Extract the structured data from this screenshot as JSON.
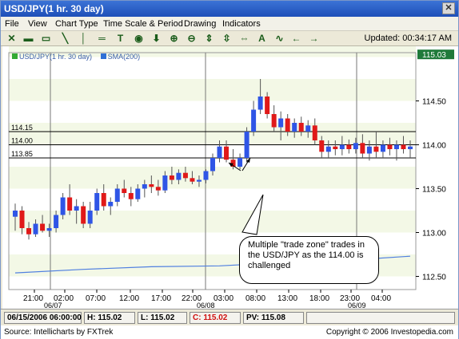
{
  "window": {
    "title": "USD/JPY(1 hr. 30 day)",
    "close_glyph": "✕"
  },
  "menu": [
    "File",
    "View",
    "Chart Type",
    "Time Scale & Period",
    "Drawing",
    "Indicators"
  ],
  "toolbar": {
    "icons": [
      "crosshair-icon",
      "print-icon",
      "zoom-rect-icon",
      "line-icon",
      "vertical-line-icon",
      "horizontal-line-icon",
      "text-icon",
      "circle-icon",
      "arrow-down-icon",
      "zoom-in-icon",
      "zoom-out-icon",
      "fit-icon",
      "fit-v-icon",
      "fit-h-icon",
      "fib-icon",
      "trend-icon",
      "arrow-left-icon",
      "arrow-right-icon"
    ],
    "glyphs": [
      "✕",
      "▬",
      "▭",
      "╲",
      "│",
      "═",
      "T",
      "◉",
      "⬇",
      "⊕",
      "⊖",
      "⇕",
      "⇳",
      "⇔",
      "A",
      "∿",
      "←",
      "→"
    ],
    "updated": "Updated: 00:34:17 AM"
  },
  "legend": {
    "series1": "USD/JPY(1 hr. 30 day)",
    "series2": "SMA(200)",
    "series1_color": "#33aa33",
    "series2_color": "#2f6fd6"
  },
  "current_price": "115.03",
  "price_lines": [
    "114.15",
    "114.00",
    "113.85"
  ],
  "x_ticks": [
    "21:00",
    "02:00",
    "07:00",
    "12:00",
    "17:00",
    "22:00",
    "03:00",
    "08:00",
    "13:00",
    "18:00",
    "23:00",
    "04:00"
  ],
  "date_labels": [
    "06/07",
    "06/08",
    "06/09"
  ],
  "callout": {
    "text": "Multiple \"trade zone\" trades in the USD/JPY as the 114.00 is challenged"
  },
  "infobar": {
    "date": "06/15/2006 06:00:00",
    "high": "H: 115.02",
    "low": "L: 115.02",
    "close": "C: 115.02",
    "pv": "PV: 115.08"
  },
  "footer": {
    "source": "Source: Intellicharts by FXTrek",
    "copyright": "Copyright © 2006 Investopedia.com"
  },
  "chart_data": {
    "type": "line",
    "ylim": [
      112.35,
      115.05
    ],
    "y_ticks": [
      112.5,
      113.0,
      113.5,
      114.0,
      114.5
    ],
    "up_color": "#2f55e6",
    "down_color": "#e01919",
    "candles": [
      {
        "o": 113.18,
        "h": 113.33,
        "l": 113.02,
        "c": 113.25
      },
      {
        "o": 113.25,
        "h": 113.3,
        "l": 112.98,
        "c": 113.05
      },
      {
        "o": 113.05,
        "h": 113.12,
        "l": 112.92,
        "c": 112.98
      },
      {
        "o": 112.98,
        "h": 113.15,
        "l": 112.95,
        "c": 113.1
      },
      {
        "o": 113.1,
        "h": 113.2,
        "l": 113.0,
        "c": 113.02
      },
      {
        "o": 113.02,
        "h": 113.1,
        "l": 112.95,
        "c": 113.05
      },
      {
        "o": 113.05,
        "h": 113.25,
        "l": 113.0,
        "c": 113.2
      },
      {
        "o": 113.2,
        "h": 113.45,
        "l": 113.15,
        "c": 113.4
      },
      {
        "o": 113.4,
        "h": 113.55,
        "l": 113.2,
        "c": 113.25
      },
      {
        "o": 113.25,
        "h": 113.38,
        "l": 113.1,
        "c": 113.3
      },
      {
        "o": 113.3,
        "h": 113.35,
        "l": 113.05,
        "c": 113.1
      },
      {
        "o": 113.1,
        "h": 113.35,
        "l": 113.05,
        "c": 113.25
      },
      {
        "o": 113.25,
        "h": 113.5,
        "l": 113.2,
        "c": 113.45
      },
      {
        "o": 113.45,
        "h": 113.55,
        "l": 113.25,
        "c": 113.3
      },
      {
        "o": 113.3,
        "h": 113.4,
        "l": 113.2,
        "c": 113.35
      },
      {
        "o": 113.35,
        "h": 113.55,
        "l": 113.3,
        "c": 113.5
      },
      {
        "o": 113.5,
        "h": 113.6,
        "l": 113.4,
        "c": 113.45
      },
      {
        "o": 113.45,
        "h": 113.52,
        "l": 113.3,
        "c": 113.38
      },
      {
        "o": 113.38,
        "h": 113.55,
        "l": 113.35,
        "c": 113.5
      },
      {
        "o": 113.5,
        "h": 113.6,
        "l": 113.4,
        "c": 113.55
      },
      {
        "o": 113.55,
        "h": 113.65,
        "l": 113.45,
        "c": 113.52
      },
      {
        "o": 113.52,
        "h": 113.6,
        "l": 113.42,
        "c": 113.48
      },
      {
        "o": 113.48,
        "h": 113.7,
        "l": 113.45,
        "c": 113.65
      },
      {
        "o": 113.65,
        "h": 113.75,
        "l": 113.55,
        "c": 113.6
      },
      {
        "o": 113.6,
        "h": 113.72,
        "l": 113.55,
        "c": 113.68
      },
      {
        "o": 113.68,
        "h": 113.75,
        "l": 113.58,
        "c": 113.62
      },
      {
        "o": 113.62,
        "h": 113.7,
        "l": 113.55,
        "c": 113.58
      },
      {
        "o": 113.58,
        "h": 113.65,
        "l": 113.52,
        "c": 113.6
      },
      {
        "o": 113.6,
        "h": 113.72,
        "l": 113.56,
        "c": 113.7
      },
      {
        "o": 113.7,
        "h": 113.9,
        "l": 113.65,
        "c": 113.85
      },
      {
        "o": 113.85,
        "h": 114.05,
        "l": 113.8,
        "c": 113.98
      },
      {
        "o": 113.98,
        "h": 114.05,
        "l": 113.8,
        "c": 113.83
      },
      {
        "o": 113.83,
        "h": 113.95,
        "l": 113.72,
        "c": 113.75
      },
      {
        "o": 113.75,
        "h": 113.9,
        "l": 113.72,
        "c": 113.85
      },
      {
        "o": 113.85,
        "h": 114.2,
        "l": 113.8,
        "c": 114.15
      },
      {
        "o": 114.15,
        "h": 114.5,
        "l": 114.1,
        "c": 114.4
      },
      {
        "o": 114.4,
        "h": 114.75,
        "l": 114.35,
        "c": 114.55
      },
      {
        "o": 114.55,
        "h": 114.6,
        "l": 114.3,
        "c": 114.35
      },
      {
        "o": 114.35,
        "h": 114.45,
        "l": 114.15,
        "c": 114.2
      },
      {
        "o": 114.2,
        "h": 114.38,
        "l": 114.05,
        "c": 114.3
      },
      {
        "o": 114.3,
        "h": 114.35,
        "l": 114.1,
        "c": 114.15
      },
      {
        "o": 114.15,
        "h": 114.3,
        "l": 114.08,
        "c": 114.25
      },
      {
        "o": 114.25,
        "h": 114.32,
        "l": 114.1,
        "c": 114.15
      },
      {
        "o": 114.15,
        "h": 114.28,
        "l": 114.08,
        "c": 114.22
      },
      {
        "o": 114.22,
        "h": 114.3,
        "l": 114.0,
        "c": 114.05
      },
      {
        "o": 114.05,
        "h": 114.1,
        "l": 113.85,
        "c": 113.92
      },
      {
        "o": 113.92,
        "h": 114.05,
        "l": 113.85,
        "c": 113.98
      },
      {
        "o": 113.98,
        "h": 114.05,
        "l": 113.88,
        "c": 113.95
      },
      {
        "o": 113.95,
        "h": 114.1,
        "l": 113.88,
        "c": 114.0
      },
      {
        "o": 114.0,
        "h": 114.06,
        "l": 113.9,
        "c": 113.95
      },
      {
        "o": 113.95,
        "h": 114.08,
        "l": 113.9,
        "c": 114.02
      },
      {
        "o": 114.02,
        "h": 114.12,
        "l": 113.85,
        "c": 113.9
      },
      {
        "o": 113.9,
        "h": 114.05,
        "l": 113.82,
        "c": 113.98
      },
      {
        "o": 113.98,
        "h": 114.15,
        "l": 113.85,
        "c": 113.92
      },
      {
        "o": 113.92,
        "h": 114.05,
        "l": 113.85,
        "c": 114.0
      },
      {
        "o": 114.0,
        "h": 114.08,
        "l": 113.88,
        "c": 113.95
      },
      {
        "o": 113.95,
        "h": 114.05,
        "l": 113.82,
        "c": 114.0
      },
      {
        "o": 114.0,
        "h": 114.1,
        "l": 113.9,
        "c": 113.95
      },
      {
        "o": 113.95,
        "h": 114.05,
        "l": 113.85,
        "c": 113.98
      }
    ],
    "sma": [
      [
        0,
        112.54
      ],
      [
        10,
        112.58
      ],
      [
        20,
        112.61
      ],
      [
        30,
        112.62
      ],
      [
        40,
        112.66
      ],
      [
        50,
        112.69
      ],
      [
        58,
        112.73
      ]
    ]
  }
}
